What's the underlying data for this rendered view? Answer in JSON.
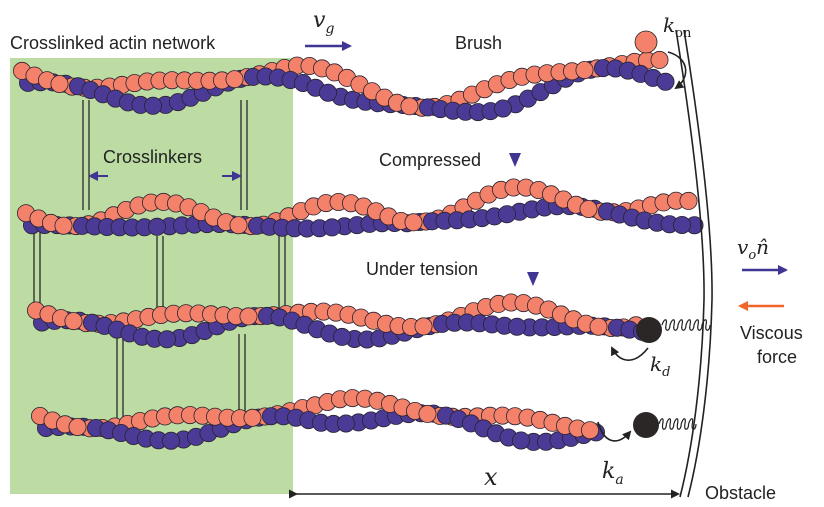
{
  "labels": {
    "network": "Crosslinked actin network",
    "brush": "Brush",
    "crosslinkers": "Crosslinkers",
    "compressed": "Compressed",
    "tension": "Under tension",
    "viscous_line1": "Viscous",
    "viscous_line2": "force",
    "obstacle": "Obstacle"
  },
  "math": {
    "vg": "v",
    "vg_sub": "g",
    "kon": "k",
    "kon_sub": "on",
    "kd": "k",
    "kd_sub": "d",
    "ka": "k",
    "ka_sub": "a",
    "x": "x",
    "vo": "v",
    "vo_sub": "o",
    "n_hat": "n̂"
  },
  "colors": {
    "monomer_orange": "#f4826b",
    "monomer_purple": "#4b3b96",
    "network_green": "#bcdca4",
    "arrow_blue": "#3f3593",
    "arrow_orange": "#f0662a",
    "cap_black": "#2b2727",
    "text": "#222222"
  },
  "filaments": [
    {
      "id": 1,
      "state": "brush"
    },
    {
      "id": 2,
      "state": "compressed"
    },
    {
      "id": 3,
      "state": "under tension"
    },
    {
      "id": 4,
      "state": "free"
    }
  ]
}
